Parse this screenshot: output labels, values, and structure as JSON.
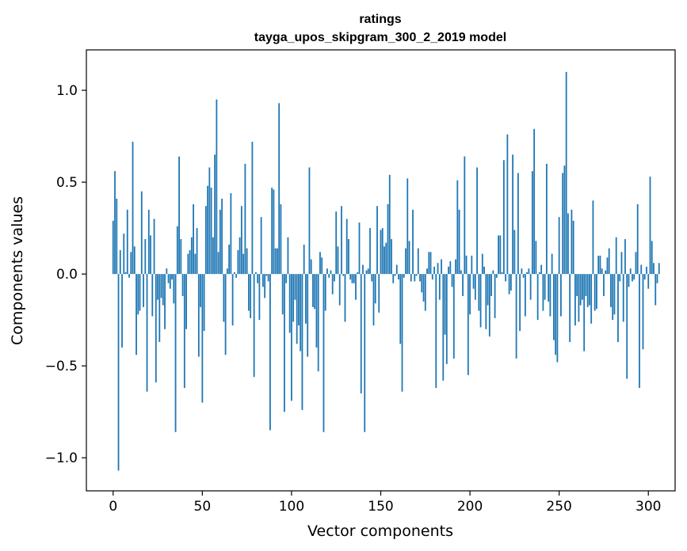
{
  "chart_data": {
    "type": "bar",
    "title": "ratings",
    "subtitle": "tayga_upos_skipgram_300_2_2019 model",
    "xlabel": "Vector components",
    "ylabel": "Components values",
    "xlim": [
      -15,
      315
    ],
    "ylim": [
      -1.18,
      1.22
    ],
    "xticks": [
      0,
      50,
      100,
      150,
      200,
      250,
      300
    ],
    "xtick_labels": [
      "0",
      "50",
      "100",
      "150",
      "200",
      "250",
      "300"
    ],
    "yticks": [
      -1.0,
      -0.5,
      0.0,
      0.5,
      1.0
    ],
    "ytick_labels": [
      "−1.0",
      "−0.5",
      "0.0",
      "0.5",
      "1.0"
    ],
    "bar_color": "#1f77b4",
    "grid": false,
    "values": [
      0.29,
      0.56,
      0.41,
      -1.07,
      0.13,
      -0.4,
      0.22,
      0.01,
      0.35,
      -0.02,
      0.12,
      0.72,
      0.15,
      -0.44,
      -0.22,
      -0.2,
      0.45,
      -0.18,
      0.19,
      -0.64,
      0.35,
      0.21,
      -0.23,
      0.3,
      -0.59,
      -0.14,
      -0.37,
      -0.13,
      -0.17,
      -0.3,
      0.03,
      -0.05,
      -0.08,
      -0.03,
      -0.16,
      -0.86,
      0.26,
      0.64,
      0.19,
      -0.12,
      -0.62,
      -0.3,
      0.11,
      0.13,
      0.2,
      0.38,
      0.11,
      0.25,
      -0.45,
      -0.18,
      -0.7,
      -0.31,
      0.37,
      0.48,
      0.58,
      0.47,
      0.2,
      0.65,
      0.95,
      0.12,
      0.35,
      0.41,
      -0.26,
      -0.44,
      0.03,
      0.16,
      0.44,
      -0.28,
      0.01,
      -0.02,
      0.13,
      0.2,
      0.37,
      0.11,
      0.6,
      0.14,
      -0.2,
      -0.24,
      0.72,
      -0.56,
      0.01,
      -0.05,
      -0.25,
      0.31,
      -0.07,
      -0.13,
      -0.01,
      -0.04,
      -0.85,
      0.47,
      0.46,
      0.14,
      0.14,
      0.93,
      0.38,
      -0.22,
      -0.75,
      -0.05,
      0.2,
      -0.32,
      -0.69,
      -0.26,
      -0.14,
      -0.38,
      -0.28,
      -0.42,
      -0.74,
      0.16,
      -0.27,
      -0.45,
      0.58,
      0.08,
      -0.18,
      -0.19,
      -0.4,
      -0.53,
      0.12,
      0.09,
      -0.86,
      -0.2,
      0.03,
      -0.02,
      0.02,
      -0.11,
      -0.04,
      0.34,
      0.15,
      -0.17,
      0.37,
      -0.01,
      -0.26,
      0.3,
      0.19,
      -0.03,
      -0.05,
      -0.05,
      -0.14,
      0.01,
      0.28,
      -0.65,
      0.05,
      -0.86,
      0.02,
      0.03,
      0.25,
      -0.04,
      -0.28,
      -0.16,
      0.37,
      -0.21,
      0.24,
      0.25,
      0.15,
      0.17,
      0.38,
      0.54,
      0.19,
      -0.05,
      -0.01,
      0.05,
      -0.03,
      -0.38,
      -0.64,
      -0.02,
      0.14,
      0.52,
      0.18,
      -0.04,
      0.35,
      -0.04,
      -0.01,
      0.14,
      -0.04,
      -0.1,
      -0.15,
      -0.2,
      0.03,
      0.12,
      0.12,
      -0.03,
      0.04,
      -0.62,
      0.06,
      -0.14,
      0.08,
      -0.58,
      -0.33,
      -0.49,
      0.04,
      0.07,
      -0.07,
      -0.46,
      0.08,
      0.51,
      0.35,
      0.02,
      -0.12,
      0.64,
      0.1,
      -0.55,
      -0.22,
      0.1,
      -0.08,
      -0.14,
      0.58,
      -0.2,
      -0.29,
      0.11,
      0.04,
      -0.3,
      -0.17,
      -0.34,
      -0.12,
      0.02,
      -0.24,
      -0.02,
      0.21,
      0.21,
      0.01,
      0.62,
      -0.04,
      0.76,
      -0.11,
      -0.09,
      0.65,
      0.24,
      -0.46,
      0.55,
      -0.31,
      0.03,
      -0.02,
      -0.23,
      0.01,
      0.03,
      -0.14,
      0.56,
      0.79,
      0.18,
      -0.25,
      0.01,
      0.05,
      -0.2,
      -0.14,
      0.6,
      -0.15,
      -0.23,
      0.11,
      -0.36,
      -0.44,
      -0.48,
      0.31,
      -0.23,
      0.55,
      0.59,
      1.1,
      0.33,
      -0.37,
      0.35,
      0.29,
      -0.28,
      -0.12,
      -0.26,
      -0.17,
      -0.14,
      -0.42,
      -0.12,
      -0.18,
      -0.17,
      -0.27,
      0.4,
      -0.2,
      -0.19,
      0.1,
      0.1,
      0.03,
      -0.12,
      0.02,
      0.09,
      0.14,
      -0.18,
      -0.25,
      -0.22,
      0.2,
      -0.37,
      -0.04,
      0.12,
      -0.26,
      0.19,
      -0.57,
      -0.07,
      0.03,
      -0.04,
      -0.03,
      0.12,
      0.38,
      -0.62,
      0.05,
      -0.41,
      -0.03,
      0.04,
      -0.08,
      0.53,
      0.18,
      0.06,
      -0.17,
      -0.05,
      0.06
    ]
  }
}
